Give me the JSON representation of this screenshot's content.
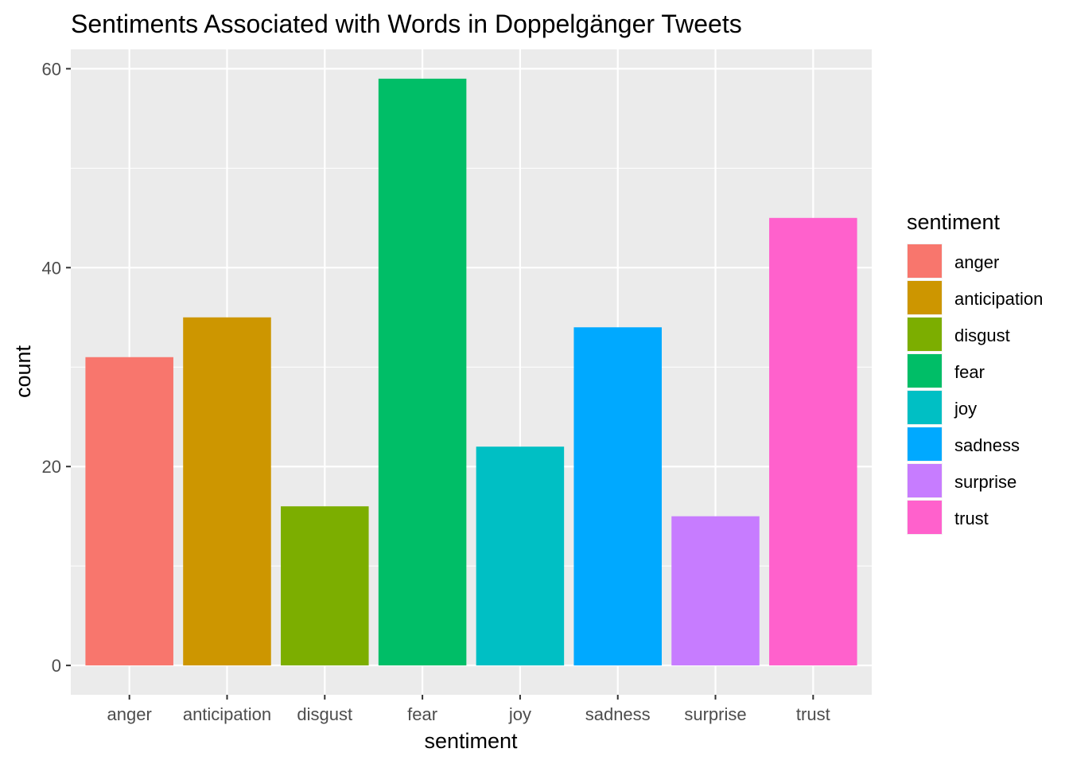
{
  "chart_data": {
    "type": "bar",
    "title": "Sentiments Associated with Words in Doppelgänger Tweets",
    "xlabel": "sentiment",
    "ylabel": "count",
    "categories": [
      "anger",
      "anticipation",
      "disgust",
      "fear",
      "joy",
      "sadness",
      "surprise",
      "trust"
    ],
    "values": [
      31,
      35,
      16,
      59,
      22,
      34,
      15,
      45
    ],
    "colors": [
      "#F8766D",
      "#CD9600",
      "#7CAE00",
      "#00BE67",
      "#00BFC4",
      "#00A9FF",
      "#C77CFF",
      "#FF61CC"
    ],
    "ylim": [
      -2.95,
      61.95
    ],
    "yticks": [
      0,
      20,
      40,
      60
    ],
    "yticks_minor": [
      10,
      30,
      50
    ],
    "grid": true,
    "legend": {
      "title": "sentiment",
      "position": "right"
    }
  }
}
